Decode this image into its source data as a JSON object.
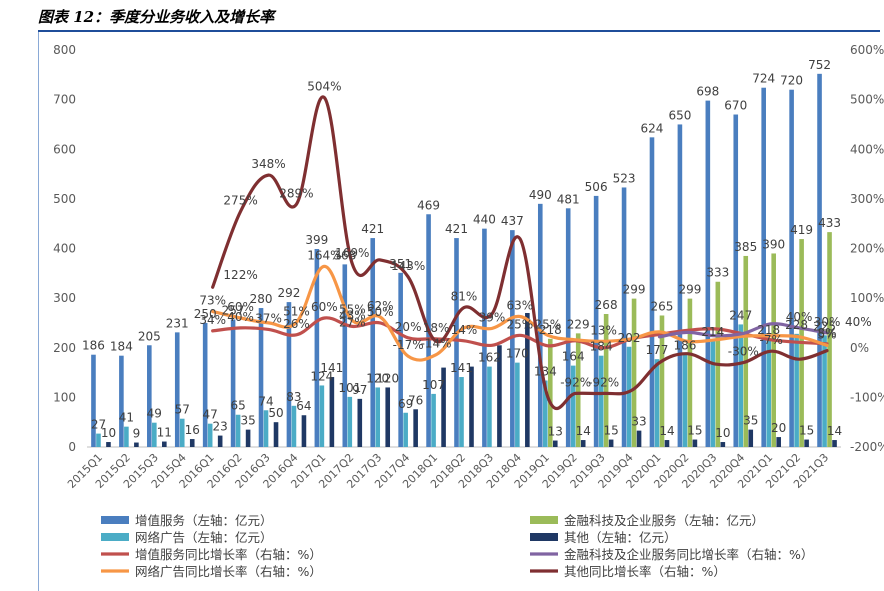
{
  "title": "图表 12：季度分业务收入及增长率",
  "chart_data": {
    "type": "bar",
    "categories": [
      "2015Q1",
      "2015Q2",
      "2015Q3",
      "2015Q4",
      "2016Q1",
      "2016Q2",
      "2016Q3",
      "2016Q4",
      "2017Q1",
      "2017Q2",
      "2017Q3",
      "2017Q4",
      "2018Q1",
      "2018Q2",
      "2018Q3",
      "2018Q4",
      "2019Q1",
      "2019Q2",
      "2019Q3",
      "2019Q4",
      "2020Q1",
      "2020Q2",
      "2020Q3",
      "2020Q4",
      "2021Q1",
      "2021Q2",
      "2021Q3"
    ],
    "y_left": {
      "ticks": [
        "0",
        "100",
        "200",
        "300",
        "400",
        "500",
        "600",
        "700",
        "800"
      ],
      "ylim": [
        0,
        800
      ]
    },
    "y_right": {
      "ticks": [
        "-200%",
        "-100%",
        "0%",
        "100%",
        "200%",
        "300%",
        "400%",
        "500%",
        "600%"
      ],
      "ylim": [
        -200,
        600
      ]
    },
    "series": [
      {
        "name": "增值服务（左轴：亿元）",
        "kind": "bar",
        "axis": "left",
        "color": "#4a7ebf",
        "values": [
          186,
          184,
          205,
          231,
          250,
          257,
          280,
          292,
          399,
          368,
          421,
          351,
          469,
          421,
          440,
          437,
          490,
          481,
          506,
          523,
          624,
          650,
          698,
          670,
          724,
          720,
          752
        ],
        "labels": [
          "186",
          "184",
          "205",
          "231",
          "250",
          "257",
          "280",
          "292",
          "399",
          "368",
          "421",
          "351",
          "469",
          "421",
          "440",
          "437",
          "490",
          "481",
          "506",
          "523",
          "624",
          "650",
          "698",
          "670",
          "724",
          "720",
          "752"
        ]
      },
      {
        "name": "网络广告（左轴：亿元）",
        "kind": "bar",
        "axis": "left",
        "color": "#4bacc6",
        "values": [
          27,
          41,
          49,
          57,
          47,
          65,
          74,
          83,
          124,
          101,
          120,
          69,
          107,
          141,
          162,
          170,
          134,
          164,
          184,
          202,
          177,
          186,
          214,
          247,
          218,
          228,
          225
        ],
        "labels": [
          "27",
          "41",
          "49",
          "57",
          "47",
          "65",
          "74",
          "83",
          "124",
          "101",
          "120",
          "69",
          "107",
          "141",
          "162",
          "170",
          "134",
          "164",
          "184",
          "202",
          "177",
          "186",
          "214",
          "247",
          "218",
          "228",
          "225"
        ]
      },
      {
        "name": "金融科技及企业服务（左轴：亿元）",
        "kind": "bar",
        "axis": "left",
        "color": "#9bbb59",
        "values": [
          null,
          null,
          null,
          null,
          null,
          null,
          null,
          null,
          null,
          null,
          null,
          null,
          null,
          null,
          null,
          null,
          218,
          229,
          268,
          299,
          265,
          299,
          333,
          385,
          390,
          419,
          433
        ],
        "labels": [
          "",
          "",
          "",
          "",
          "",
          "",
          "",
          "",
          "",
          "",
          "",
          "",
          "",
          "",
          "",
          "",
          "218",
          "229",
          "268",
          "299",
          "265",
          "299",
          "333",
          "385",
          "390",
          "419",
          "433"
        ]
      },
      {
        "name": "其他（左轴：亿元）",
        "kind": "bar",
        "axis": "left",
        "color": "#1f3864",
        "values": [
          10,
          9,
          11,
          16,
          23,
          35,
          50,
          64,
          141,
          97,
          120,
          76,
          160,
          162,
          205,
          270,
          13,
          14,
          15,
          33,
          14,
          15,
          10,
          35,
          20,
          15,
          14
        ],
        "labels": [
          "10",
          "9",
          "11",
          "16",
          "23",
          "35",
          "50",
          "64",
          "141",
          "97",
          "120",
          "76",
          "",
          "",
          "",
          "",
          "13",
          "14",
          "15",
          "33",
          "14",
          "15",
          "10",
          "35",
          "20",
          "15",
          "14"
        ]
      },
      {
        "name": "增值服务同比增长率（右轴：%）",
        "kind": "line",
        "axis": "right",
        "color": "#c0504d",
        "values": [
          null,
          null,
          null,
          null,
          34,
          40,
          37,
          26,
          60,
          43,
          50,
          20,
          18,
          14,
          5,
          25,
          4,
          14,
          0,
          18,
          27,
          35,
          38,
          28,
          16,
          11,
          8
        ],
        "labels": [
          "",
          "",
          "",
          "",
          "34%",
          "40%",
          "37%",
          "26%",
          "60%",
          "43%",
          "50%",
          "20%",
          "18%",
          "14%",
          "",
          "25%",
          "",
          "",
          "",
          "",
          "",
          "",
          "",
          "",
          "",
          "",
          "8%"
        ]
      },
      {
        "name": "网络广告同比增长率（右轴：%）",
        "kind": "line",
        "axis": "right",
        "color": "#f79646",
        "values": [
          null,
          null,
          null,
          null,
          73,
          60,
          50,
          51,
          164,
          55,
          62,
          -17,
          -14,
          40,
          39,
          63,
          25,
          16,
          13,
          18,
          32,
          13,
          16,
          23,
          24,
          22,
          5
        ],
        "labels": [
          "",
          "",
          "",
          "",
          "73%",
          "60%",
          "",
          "51%",
          "164%",
          "55%",
          "62%",
          "-17%",
          "-14%",
          "",
          "39%",
          "63%",
          "25%",
          "",
          "13%",
          "",
          "",
          "",
          "",
          "",
          "",
          "",
          "5%"
        ]
      },
      {
        "name": "金融科技及企业服务同比增长率（右轴：%）",
        "kind": "line",
        "axis": "right",
        "color": "#8064a2",
        "values": [
          null,
          null,
          null,
          null,
          null,
          null,
          null,
          null,
          null,
          null,
          null,
          null,
          null,
          null,
          null,
          null,
          null,
          null,
          null,
          null,
          22,
          31,
          24,
          29,
          48,
          40,
          30
        ],
        "labels": [
          "",
          "",
          "",
          "",
          "",
          "",
          "",
          "",
          "",
          "",
          "",
          "",
          "",
          "",
          "",
          "",
          "",
          "",
          "",
          "",
          "",
          "",
          "",
          "",
          "",
          "40%",
          "30%"
        ]
      },
      {
        "name": "其他同比增长率（右轴：%）",
        "kind": "line",
        "axis": "right",
        "color": "#7f2f31",
        "values": [
          null,
          null,
          null,
          null,
          122,
          275,
          348,
          289,
          504,
          169,
          177,
          143,
          13,
          81,
          68,
          220,
          -99,
          -92,
          -92,
          -86,
          -30,
          -12,
          -33,
          -30,
          -7,
          -23,
          -6
        ],
        "labels": [
          "",
          "",
          "",
          "",
          "",
          "275%",
          "348%",
          "289%",
          "504%",
          "169%",
          "",
          "143%",
          "",
          "81%",
          "",
          "",
          "",
          "-92%",
          "-92%",
          "",
          "",
          "",
          "",
          "-30%",
          "-7%",
          "",
          ""
        ]
      }
    ],
    "extra_labels": {
      "first": [
        "",
        "",
        "",
        "",
        "",
        "122%",
        "",
        "",
        "",
        "27%",
        "",
        "",
        "",
        "",
        "",
        "",
        "",
        "",
        "",
        "",
        "",
        "",
        "",
        "",
        "",
        "",
        ""
      ],
      "second": [
        "",
        "",
        "",
        "",
        "",
        "",
        "",
        "",
        "",
        "",
        "",
        "",
        "",
        "",
        "",
        "",
        "",
        "",
        "",
        "",
        "",
        "",
        "",
        "",
        "",
        "",
        "40%"
      ]
    },
    "legend_position": "bottom",
    "grid": false
  }
}
